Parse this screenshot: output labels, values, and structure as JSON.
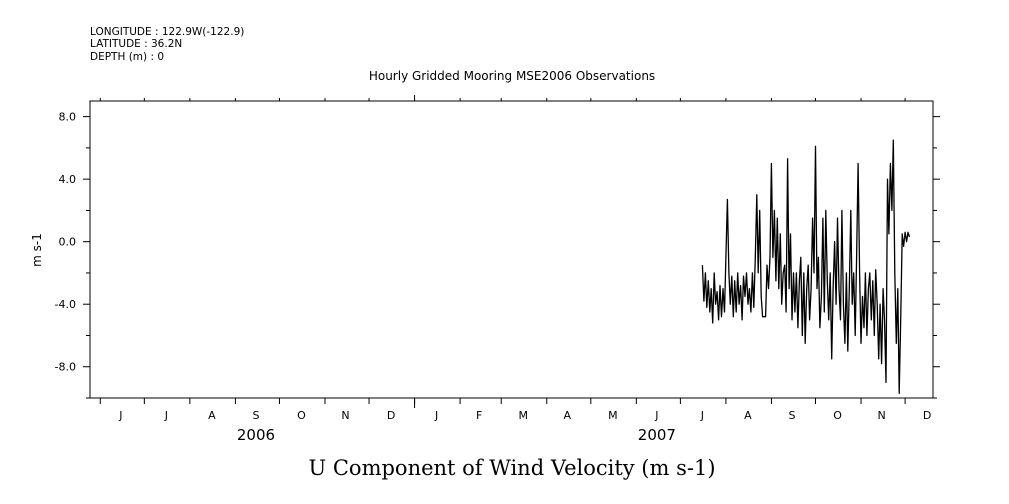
{
  "header": {
    "longitude": "LONGITUDE : 122.9W(-122.9)",
    "latitude": "LATITUDE : 36.2N",
    "depth": "DEPTH (m) : 0"
  },
  "chart_data": {
    "type": "line",
    "title": "Hourly Gridded Mooring MSE2006 Observations",
    "xlabel": "U Component of Wind Velocity (m s-1)",
    "ylabel": "m s-1",
    "xlim": [
      "2006-05-25",
      "2007-12-20"
    ],
    "ylim": [
      -10,
      9
    ],
    "y_ticks": [
      "8.0",
      "4.0",
      "0.0",
      "-4.0",
      "-8.0"
    ],
    "y_tick_values": [
      8,
      4,
      0,
      -4,
      -8
    ],
    "month_labels": [
      {
        "label": "J",
        "date": "2006-06-15"
      },
      {
        "label": "J",
        "date": "2006-07-16"
      },
      {
        "label": "A",
        "date": "2006-08-16"
      },
      {
        "label": "S",
        "date": "2006-09-15"
      },
      {
        "label": "O",
        "date": "2006-10-16"
      },
      {
        "label": "N",
        "date": "2006-11-15"
      },
      {
        "label": "D",
        "date": "2006-12-16"
      },
      {
        "label": "J",
        "date": "2007-01-16"
      },
      {
        "label": "F",
        "date": "2007-02-14"
      },
      {
        "label": "M",
        "date": "2007-03-16"
      },
      {
        "label": "A",
        "date": "2007-04-15"
      },
      {
        "label": "M",
        "date": "2007-05-16"
      },
      {
        "label": "J",
        "date": "2007-06-15"
      },
      {
        "label": "J",
        "date": "2007-07-16"
      },
      {
        "label": "A",
        "date": "2007-08-16"
      },
      {
        "label": "S",
        "date": "2007-09-15"
      },
      {
        "label": "O",
        "date": "2007-10-16"
      },
      {
        "label": "N",
        "date": "2007-11-15"
      },
      {
        "label": "D",
        "date": "2007-12-16"
      }
    ],
    "year_labels": [
      {
        "label": "2006",
        "date": "2006-09-15"
      },
      {
        "label": "2007",
        "date": "2007-06-15"
      }
    ],
    "series": [
      {
        "color": "#000000",
        "points": [
          [
            "2007-07-16",
            -1.5
          ],
          [
            "2007-07-17",
            -3.8
          ],
          [
            "2007-07-18",
            -2.0
          ],
          [
            "2007-07-19",
            -4.2
          ],
          [
            "2007-07-20",
            -2.5
          ],
          [
            "2007-07-21",
            -4.5
          ],
          [
            "2007-07-22",
            -3.0
          ],
          [
            "2007-07-23",
            -5.2
          ],
          [
            "2007-07-24",
            -2.0
          ],
          [
            "2007-07-25",
            -4.0
          ],
          [
            "2007-07-26",
            -3.2
          ],
          [
            "2007-07-27",
            -5.0
          ],
          [
            "2007-07-28",
            -2.8
          ],
          [
            "2007-07-29",
            -4.8
          ],
          [
            "2007-07-30",
            -3.0
          ],
          [
            "2007-07-31",
            -4.5
          ],
          [
            "2007-08-01",
            -1.0
          ],
          [
            "2007-08-02",
            2.7
          ],
          [
            "2007-08-03",
            -2.0
          ],
          [
            "2007-08-04",
            -4.0
          ],
          [
            "2007-08-05",
            -2.2
          ],
          [
            "2007-08-06",
            -4.8
          ],
          [
            "2007-08-07",
            -2.5
          ],
          [
            "2007-08-08",
            -4.5
          ],
          [
            "2007-08-09",
            -2.0
          ],
          [
            "2007-08-10",
            -4.0
          ],
          [
            "2007-08-11",
            -2.8
          ],
          [
            "2007-08-12",
            -5.0
          ],
          [
            "2007-08-13",
            -2.2
          ],
          [
            "2007-08-14",
            -3.5
          ],
          [
            "2007-08-15",
            -2.0
          ],
          [
            "2007-08-16",
            -4.0
          ],
          [
            "2007-08-17",
            -3.0
          ],
          [
            "2007-08-18",
            -4.5
          ],
          [
            "2007-08-19",
            -2.0
          ],
          [
            "2007-08-20",
            -4.2
          ],
          [
            "2007-08-21",
            -1.0
          ],
          [
            "2007-08-22",
            3.0
          ],
          [
            "2007-08-23",
            -2.0
          ],
          [
            "2007-08-24",
            2.0
          ],
          [
            "2007-08-25",
            -3.5
          ],
          [
            "2007-08-26",
            -4.8
          ],
          [
            "2007-08-27",
            -4.8
          ],
          [
            "2007-08-28",
            -4.8
          ],
          [
            "2007-08-29",
            -1.5
          ],
          [
            "2007-08-30",
            -3.0
          ],
          [
            "2007-08-31",
            -1.0
          ],
          [
            "2007-09-01",
            5.0
          ],
          [
            "2007-09-02",
            -1.0
          ],
          [
            "2007-09-03",
            2.0
          ],
          [
            "2007-09-04",
            -2.5
          ],
          [
            "2007-09-05",
            1.5
          ],
          [
            "2007-09-06",
            -3.0
          ],
          [
            "2007-09-07",
            0.5
          ],
          [
            "2007-09-08",
            -4.0
          ],
          [
            "2007-09-09",
            -2.0
          ],
          [
            "2007-09-10",
            -1.5
          ],
          [
            "2007-09-11",
            -4.5
          ],
          [
            "2007-09-12",
            5.3
          ],
          [
            "2007-09-13",
            -3.0
          ],
          [
            "2007-09-14",
            0.5
          ],
          [
            "2007-09-15",
            -5.0
          ],
          [
            "2007-09-16",
            -2.0
          ],
          [
            "2007-09-17",
            -4.5
          ],
          [
            "2007-09-18",
            -2.0
          ],
          [
            "2007-09-19",
            -5.5
          ],
          [
            "2007-09-20",
            -2.5
          ],
          [
            "2007-09-21",
            -1.0
          ],
          [
            "2007-09-22",
            -6.0
          ],
          [
            "2007-09-23",
            -2.0
          ],
          [
            "2007-09-24",
            -6.5
          ],
          [
            "2007-09-25",
            -3.0
          ],
          [
            "2007-09-26",
            -1.5
          ],
          [
            "2007-09-27",
            -5.0
          ],
          [
            "2007-09-28",
            -3.0
          ],
          [
            "2007-09-29",
            1.5
          ],
          [
            "2007-09-30",
            -2.0
          ],
          [
            "2007-10-01",
            6.1
          ],
          [
            "2007-10-02",
            -3.0
          ],
          [
            "2007-10-03",
            -1.0
          ],
          [
            "2007-10-04",
            -5.5
          ],
          [
            "2007-10-05",
            -3.5
          ],
          [
            "2007-10-06",
            1.5
          ],
          [
            "2007-10-07",
            -4.5
          ],
          [
            "2007-10-08",
            2.0
          ],
          [
            "2007-10-09",
            -2.5
          ],
          [
            "2007-10-10",
            -5.0
          ],
          [
            "2007-10-11",
            -2.0
          ],
          [
            "2007-10-12",
            -7.5
          ],
          [
            "2007-10-13",
            -3.0
          ],
          [
            "2007-10-14",
            0.0
          ],
          [
            "2007-10-15",
            -4.0
          ],
          [
            "2007-10-16",
            1.5
          ],
          [
            "2007-10-17",
            -3.0
          ],
          [
            "2007-10-18",
            -5.0
          ],
          [
            "2007-10-19",
            2.0
          ],
          [
            "2007-10-20",
            -4.0
          ],
          [
            "2007-10-21",
            -6.5
          ],
          [
            "2007-10-22",
            -2.0
          ],
          [
            "2007-10-23",
            -7.0
          ],
          [
            "2007-10-24",
            -3.0
          ],
          [
            "2007-10-25",
            2.0
          ],
          [
            "2007-10-26",
            -4.0
          ],
          [
            "2007-10-27",
            -2.0
          ],
          [
            "2007-10-28",
            -6.0
          ],
          [
            "2007-10-29",
            -1.0
          ],
          [
            "2007-10-30",
            5.0
          ],
          [
            "2007-10-31",
            -2.0
          ],
          [
            "2007-11-01",
            -6.5
          ],
          [
            "2007-11-02",
            -3.5
          ],
          [
            "2007-11-03",
            -5.5
          ],
          [
            "2007-11-04",
            -2.0
          ],
          [
            "2007-11-05",
            -6.0
          ],
          [
            "2007-11-06",
            -3.0
          ],
          [
            "2007-11-07",
            -2.0
          ],
          [
            "2007-11-08",
            -5.0
          ],
          [
            "2007-11-09",
            -2.5
          ],
          [
            "2007-11-10",
            -6.0
          ],
          [
            "2007-11-11",
            -1.8
          ],
          [
            "2007-11-12",
            -4.0
          ],
          [
            "2007-11-13",
            -7.5
          ],
          [
            "2007-11-14",
            -4.0
          ],
          [
            "2007-11-15",
            -7.8
          ],
          [
            "2007-11-16",
            -3.0
          ],
          [
            "2007-11-17",
            -5.0
          ],
          [
            "2007-11-18",
            -9.0
          ],
          [
            "2007-11-19",
            4.0
          ],
          [
            "2007-11-20",
            0.5
          ],
          [
            "2007-11-21",
            5.0
          ],
          [
            "2007-11-22",
            2.0
          ],
          [
            "2007-11-23",
            6.5
          ],
          [
            "2007-11-24",
            -2.0
          ],
          [
            "2007-11-25",
            -6.5
          ],
          [
            "2007-11-26",
            -3.0
          ],
          [
            "2007-11-27",
            -9.7
          ],
          [
            "2007-11-28",
            -5.0
          ],
          [
            "2007-11-29",
            0.5
          ],
          [
            "2007-11-30",
            -0.3
          ],
          [
            "2007-12-01",
            0.6
          ],
          [
            "2007-12-02",
            0.0
          ],
          [
            "2007-12-03",
            0.6
          ],
          [
            "2007-12-04",
            0.3
          ]
        ]
      }
    ]
  }
}
